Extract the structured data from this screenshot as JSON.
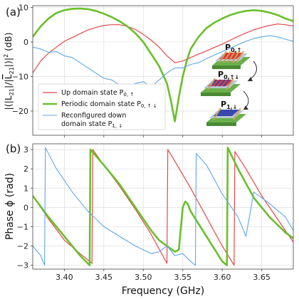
{
  "chart_data": [
    {
      "panel": "(a)",
      "type": "line",
      "ylabel": "|(|L21|/|L21|)|² (dB)",
      "ylabel_parts": {
        "pre": "|(|",
        "num": "L",
        "num_sub": "21",
        "mid": "|/|",
        "den": "L",
        "den_sub": "21",
        "post": "|)|",
        "sup": "2",
        "unit": " (dB)"
      },
      "xlim": [
        3.36,
        3.69
      ],
      "ylim": [
        -27,
        10.5
      ],
      "yticks": [
        "10",
        "0",
        "−10",
        "−20"
      ],
      "ytick_values": [
        10,
        0,
        -10,
        -20
      ],
      "xticks": [
        "3.40",
        "3.45",
        "3.50",
        "3.55",
        "3.60",
        "3.65"
      ],
      "xtick_values": [
        3.4,
        3.45,
        3.5,
        3.55,
        3.6,
        3.65
      ],
      "grid": true,
      "legend_position": "lower-left",
      "series": [
        {
          "name": "Up domain state P0, ↑",
          "label_main": "Up domain state P",
          "label_sub": "0, ↑",
          "color": "#e8474a",
          "width": 1.2,
          "x": [
            3.36,
            3.37,
            3.38,
            3.39,
            3.4,
            3.41,
            3.42,
            3.43,
            3.44,
            3.45,
            3.46,
            3.47,
            3.48,
            3.49,
            3.5,
            3.51,
            3.52,
            3.53,
            3.54,
            3.55,
            3.56,
            3.57,
            3.58,
            3.59,
            3.6,
            3.61,
            3.62,
            3.63,
            3.64,
            3.65,
            3.66,
            3.67,
            3.68,
            3.69
          ],
          "y": [
            -9,
            -5.5,
            -3.2,
            -1.5,
            0.2,
            1.3,
            2.4,
            3.5,
            4.2,
            4.8,
            5.0,
            5.0,
            4.5,
            3.6,
            2.2,
            0.5,
            -1.5,
            -4.0,
            -6.0,
            -5.5,
            -4.5,
            -3.5,
            -2.6,
            -1.6,
            -0.6,
            0.5,
            1.6,
            2.6,
            3.5,
            4.2,
            4.8,
            5.2,
            5.0,
            4.6
          ]
        },
        {
          "name": "Periodic domain state P0, ↑↓",
          "label_main": "Periodic domain state P",
          "label_sub": "0, ↑ ↓",
          "color": "#6abf2c",
          "width": 2.6,
          "x": [
            3.36,
            3.37,
            3.38,
            3.39,
            3.4,
            3.41,
            3.42,
            3.43,
            3.44,
            3.45,
            3.46,
            3.47,
            3.48,
            3.49,
            3.5,
            3.51,
            3.52,
            3.53,
            3.535,
            3.54,
            3.545,
            3.55,
            3.555,
            3.56,
            3.57,
            3.58,
            3.59,
            3.6,
            3.61,
            3.62,
            3.63,
            3.64,
            3.65,
            3.66,
            3.67,
            3.68,
            3.69
          ],
          "y": [
            1.5,
            4.5,
            6.8,
            8.4,
            9.2,
            9.6,
            9.7,
            9.5,
            9.0,
            8.2,
            7.2,
            6.0,
            4.5,
            2.5,
            0.0,
            -3.5,
            -7.0,
            -12.0,
            -17.0,
            -23.0,
            -16.0,
            -10.0,
            -5.5,
            -2.0,
            1.5,
            4.0,
            5.6,
            6.8,
            7.8,
            8.5,
            9.0,
            9.2,
            9.0,
            8.5,
            7.8,
            6.8,
            6.0
          ]
        },
        {
          "name": "Reconfigured down domain state P1, ↓",
          "label_main": "Reconfigured down",
          "label_line2": "domain state P",
          "label_sub": "1, ↓",
          "color": "#5ea8e8",
          "width": 1.1,
          "x": [
            3.36,
            3.37,
            3.38,
            3.39,
            3.4,
            3.41,
            3.42,
            3.43,
            3.44,
            3.45,
            3.46,
            3.47,
            3.48,
            3.49,
            3.5,
            3.51,
            3.52,
            3.53,
            3.54,
            3.55,
            3.56,
            3.57,
            3.58,
            3.59,
            3.6,
            3.61,
            3.62,
            3.63,
            3.64,
            3.65,
            3.66,
            3.67,
            3.68,
            3.69
          ],
          "y": [
            -1.5,
            -2.0,
            -3.0,
            -2.8,
            -4.0,
            -4.5,
            -6.0,
            -7.5,
            -9.0,
            -10.5,
            -11.0,
            -12.5,
            -13.0,
            -12.0,
            -11.5,
            -13.0,
            -11.0,
            -9.0,
            -7.5,
            -7.5,
            -6.5,
            -6.0,
            -4.8,
            -3.8,
            -2.8,
            -1.8,
            -0.8,
            0.2,
            1.0,
            1.5,
            1.8,
            1.5,
            0.8,
            0.2
          ]
        }
      ],
      "inset": {
        "labels": [
          {
            "main": "P",
            "sub": "0,↑"
          },
          {
            "main": "P",
            "sub": "0,↑↓"
          },
          {
            "main": "P",
            "sub": "1,↓"
          }
        ]
      }
    },
    {
      "panel": "(b)",
      "type": "line",
      "ylabel": "Phase ϕ (rad)",
      "xlabel": "Frequency (GHz)",
      "xlim": [
        3.36,
        3.69
      ],
      "ylim": [
        -3.2,
        3.3
      ],
      "yticks": [
        "3",
        "2",
        "1",
        "0",
        "−1",
        "−2",
        "−3"
      ],
      "ytick_values": [
        3,
        2,
        1,
        0,
        -1,
        -2,
        -3
      ],
      "xticks": [
        "3.40",
        "3.45",
        "3.50",
        "3.55",
        "3.60",
        "3.65"
      ],
      "xtick_values": [
        3.4,
        3.45,
        3.5,
        3.55,
        3.6,
        3.65
      ],
      "grid": true,
      "series": [
        {
          "name": "Up domain state P0, ↑",
          "color": "#e8474a",
          "width": 1.2,
          "x": [
            3.36,
            3.38,
            3.4,
            3.42,
            3.435,
            3.436,
            3.45,
            3.47,
            3.49,
            3.51,
            3.53,
            3.531,
            3.54,
            3.56,
            3.58,
            3.6,
            3.615,
            3.616,
            3.63,
            3.65,
            3.67,
            3.69
          ],
          "y": [
            0.6,
            -0.6,
            -1.7,
            -2.4,
            -2.9,
            3.0,
            2.2,
            1.1,
            -0.1,
            -1.4,
            -2.9,
            3.0,
            2.4,
            1.0,
            -0.5,
            -2.0,
            -3.0,
            2.9,
            2.0,
            0.6,
            -0.6,
            -1.8
          ]
        },
        {
          "name": "Periodic domain state P0, ↑↓",
          "color": "#6abf2c",
          "width": 2.6,
          "x": [
            3.36,
            3.38,
            3.4,
            3.42,
            3.432,
            3.433,
            3.45,
            3.47,
            3.49,
            3.51,
            3.52,
            3.53,
            3.54,
            3.545,
            3.55,
            3.553,
            3.556,
            3.56,
            3.58,
            3.6,
            3.606,
            3.607,
            3.62,
            3.64,
            3.66,
            3.68,
            3.69
          ],
          "y": [
            0.6,
            -0.5,
            -1.5,
            -2.5,
            -3.0,
            3.0,
            2.2,
            1.2,
            0.0,
            -1.2,
            -1.7,
            -2.0,
            -2.3,
            -2.2,
            0.0,
            0.3,
            0.2,
            -0.2,
            -1.5,
            -2.8,
            -3.0,
            3.1,
            2.0,
            0.5,
            -0.5,
            -1.3,
            -1.6
          ]
        },
        {
          "name": "Reconfigured down domain state P1, ↓",
          "color": "#5ea8e8",
          "width": 1.1,
          "x": [
            3.36,
            3.37,
            3.375,
            3.376,
            3.39,
            3.41,
            3.43,
            3.45,
            3.47,
            3.49,
            3.51,
            3.52,
            3.53,
            3.54,
            3.55,
            3.56,
            3.566,
            3.567,
            3.58,
            3.6,
            3.62,
            3.63,
            3.64,
            3.65,
            3.66,
            3.68,
            3.69
          ],
          "y": [
            -2.0,
            -2.5,
            -3.0,
            3.1,
            2.0,
            0.8,
            -0.2,
            -1.0,
            -1.5,
            -2.0,
            -2.4,
            -2.3,
            -2.0,
            -2.5,
            -2.4,
            -2.8,
            -3.0,
            2.8,
            2.2,
            0.7,
            -0.5,
            -1.5,
            0.8,
            0.5,
            0.2,
            -0.5,
            -1.2
          ]
        }
      ]
    }
  ]
}
